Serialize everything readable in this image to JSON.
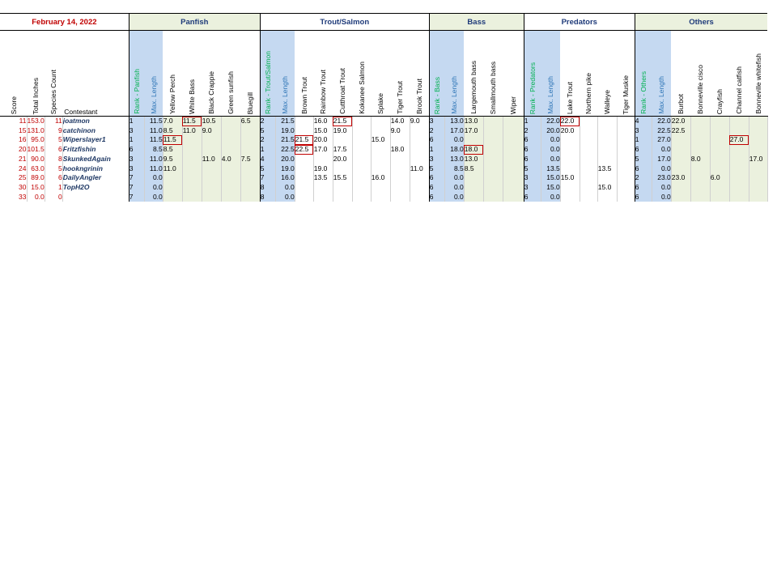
{
  "date": "February 14, 2022",
  "groups": [
    {
      "key": "panfish",
      "label": "Panfish"
    },
    {
      "key": "trout",
      "label": "Trout/Salmon"
    },
    {
      "key": "bass",
      "label": "Bass"
    },
    {
      "key": "predators",
      "label": "Predators"
    },
    {
      "key": "others",
      "label": "Others"
    }
  ],
  "headers": {
    "score": "Score",
    "total": "Total Inches",
    "count": "Species Count",
    "contestant": "Contestant",
    "panfish": [
      "Rank - Panfish",
      "Max. Length",
      "Yellow Perch",
      "White Bass",
      "Black Crappie",
      "Green sunfish",
      "Bluegill"
    ],
    "trout": [
      "Rank - Trout/Salmon",
      "Max. Length",
      "Brown Trout",
      "Rainbow Trout",
      "Cutthroat Trout",
      "Kokanee Salmon",
      "Splake",
      "Tiger Trout",
      "Brook Trout"
    ],
    "bass": [
      "Rank - Bass",
      "Max. Length",
      "Largemouth bass",
      "Smallmouth bass",
      "Wiper"
    ],
    "predators": [
      "Rank - Predators",
      "Max. Length",
      "Lake Trout",
      "Northern pike",
      "Walleye",
      "Tiger Muskie"
    ],
    "others": [
      "Rank - Others",
      "Max. Length",
      "Burbot",
      "Bonneville cisco",
      "Crayfish",
      "Channel catfish",
      "Bonneville whitefish"
    ]
  },
  "rows": [
    {
      "score": "11",
      "total": "153.0",
      "count": "11",
      "name": "joatmon",
      "panfish": [
        "1",
        "11.5",
        "7.0",
        "11.5",
        "10.5",
        "",
        "6.5"
      ],
      "trout": [
        "2",
        "21.5",
        "",
        "16.0",
        "21.5",
        "",
        "",
        "14.0",
        "9.0"
      ],
      "bass": [
        "3",
        "13.0",
        "13.0",
        "",
        ""
      ],
      "predators": [
        "1",
        "22.0",
        "22.0",
        "",
        "",
        ""
      ],
      "others": [
        "4",
        "22.0",
        "22.0",
        "",
        "",
        "",
        ""
      ]
    },
    {
      "score": "15",
      "total": "131.0",
      "count": "9",
      "name": "catchinon",
      "panfish": [
        "3",
        "11.0",
        "8.5",
        "11.0",
        "9.0",
        "",
        ""
      ],
      "trout": [
        "5",
        "19.0",
        "",
        "15.0",
        "19.0",
        "",
        "",
        "9.0",
        ""
      ],
      "bass": [
        "2",
        "17.0",
        "17.0",
        "",
        ""
      ],
      "predators": [
        "2",
        "20.0",
        "20.0",
        "",
        "",
        ""
      ],
      "others": [
        "3",
        "22.5",
        "22.5",
        "",
        "",
        "",
        ""
      ]
    },
    {
      "score": "16",
      "total": "95.0",
      "count": "5",
      "name": "Wiperslayer1",
      "panfish": [
        "1",
        "11.5",
        "11.5",
        "",
        "",
        "",
        ""
      ],
      "trout": [
        "2",
        "21.5",
        "21.5",
        "20.0",
        "",
        "",
        "15.0",
        "",
        ""
      ],
      "bass": [
        "6",
        "0.0",
        "",
        "",
        ""
      ],
      "predators": [
        "6",
        "0.0",
        "",
        "",
        "",
        ""
      ],
      "others": [
        "1",
        "27.0",
        "",
        "",
        "",
        "27.0",
        ""
      ]
    },
    {
      "score": "20",
      "total": "101.5",
      "count": "6",
      "name": "Fritzfishin",
      "panfish": [
        "6",
        "8.5",
        "8.5",
        "",
        "",
        "",
        ""
      ],
      "trout": [
        "1",
        "22.5",
        "22.5",
        "17.0",
        "17.5",
        "",
        "",
        "18.0",
        ""
      ],
      "bass": [
        "1",
        "18.0",
        "18.0",
        "",
        ""
      ],
      "predators": [
        "6",
        "0.0",
        "",
        "",
        "",
        ""
      ],
      "others": [
        "6",
        "0.0",
        "",
        "",
        "",
        "",
        ""
      ]
    },
    {
      "score": "21",
      "total": "90.0",
      "count": "8",
      "name": "SkunkedAgain",
      "panfish": [
        "3",
        "11.0",
        "9.5",
        "",
        "11.0",
        "4.0",
        "7.5"
      ],
      "trout": [
        "4",
        "20.0",
        "",
        "",
        "20.0",
        "",
        "",
        "",
        ""
      ],
      "bass": [
        "3",
        "13.0",
        "13.0",
        "",
        ""
      ],
      "predators": [
        "6",
        "0.0",
        "",
        "",
        "",
        ""
      ],
      "others": [
        "5",
        "17.0",
        "",
        "8.0",
        "",
        "",
        "17.0"
      ]
    },
    {
      "score": "24",
      "total": "63.0",
      "count": "5",
      "name": "hookngrinin",
      "panfish": [
        "3",
        "11.0",
        "11.0",
        "",
        "",
        "",
        ""
      ],
      "trout": [
        "5",
        "19.0",
        "",
        "19.0",
        "",
        "",
        "",
        "",
        "11.0"
      ],
      "bass": [
        "5",
        "8.5",
        "8.5",
        "",
        ""
      ],
      "predators": [
        "5",
        "13.5",
        "",
        "",
        "13.5",
        ""
      ],
      "others": [
        "6",
        "0.0",
        "",
        "",
        "",
        "",
        ""
      ]
    },
    {
      "score": "25",
      "total": "89.0",
      "count": "6",
      "name": "DailyAngler",
      "panfish": [
        "7",
        "0.0",
        "",
        "",
        "",
        "",
        ""
      ],
      "trout": [
        "7",
        "16.0",
        "",
        "13.5",
        "15.5",
        "",
        "16.0",
        "",
        ""
      ],
      "bass": [
        "6",
        "0.0",
        "",
        "",
        ""
      ],
      "predators": [
        "3",
        "15.0",
        "15.0",
        "",
        "",
        ""
      ],
      "others": [
        "2",
        "23.0",
        "23.0",
        "",
        "6.0",
        "",
        ""
      ]
    },
    {
      "score": "30",
      "total": "15.0",
      "count": "1",
      "name": "TopH2O",
      "panfish": [
        "7",
        "0.0",
        "",
        "",
        "",
        "",
        ""
      ],
      "trout": [
        "8",
        "0.0",
        "",
        "",
        "",
        "",
        "",
        "",
        ""
      ],
      "bass": [
        "6",
        "0.0",
        "",
        "",
        ""
      ],
      "predators": [
        "3",
        "15.0",
        "",
        "",
        "15.0",
        ""
      ],
      "others": [
        "6",
        "0.0",
        "",
        "",
        "",
        "",
        ""
      ]
    },
    {
      "score": "33",
      "total": "0.0",
      "count": "0",
      "name": "",
      "panfish": [
        "7",
        "0.0",
        "",
        "",
        "",
        "",
        ""
      ],
      "trout": [
        "8",
        "0.0",
        "",
        "",
        "",
        "",
        "",
        "",
        ""
      ],
      "bass": [
        "6",
        "0.0",
        "",
        "",
        ""
      ],
      "predators": [
        "6",
        "0.0",
        "",
        "",
        "",
        ""
      ],
      "others": [
        "6",
        "0.0",
        "",
        "",
        "",
        "",
        ""
      ]
    }
  ],
  "highlights": [
    {
      "row": 0,
      "group": "panfish",
      "col": 3
    },
    {
      "row": 0,
      "group": "trout",
      "col": 4
    },
    {
      "row": 0,
      "group": "predators",
      "col": 2
    },
    {
      "row": 2,
      "group": "panfish",
      "col": 2
    },
    {
      "row": 2,
      "group": "trout",
      "col": 2
    },
    {
      "row": 2,
      "group": "others",
      "col": 5
    },
    {
      "row": 3,
      "group": "trout",
      "col": 2
    },
    {
      "row": 3,
      "group": "bass",
      "col": 2
    }
  ],
  "colors": {
    "red": "#c00000",
    "blue_band": "#c5d9f1",
    "green_band": "#ebf1de",
    "name_blue": "#1f3864",
    "rank_green": "#00b050"
  }
}
